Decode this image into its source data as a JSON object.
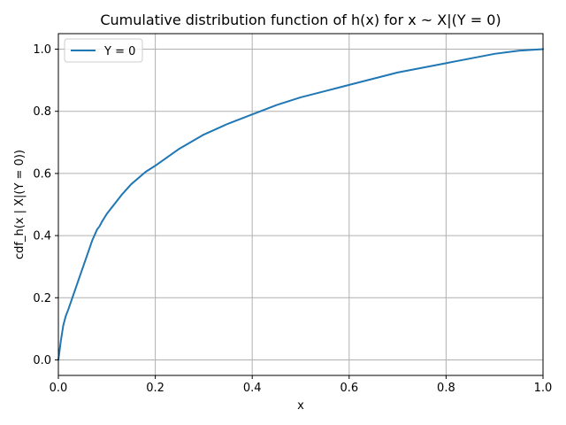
{
  "chart_data": {
    "type": "line",
    "title": "Cumulative distribution function of h(x) for x ~ X|(Y = 0)",
    "xlabel": "x",
    "ylabel": "cdf_h(x | X|(Y = 0))",
    "xlim": [
      0.0,
      1.0
    ],
    "ylim": [
      -0.05,
      1.05
    ],
    "grid": true,
    "legend_position": "top-left",
    "x_ticks": [
      "0.0",
      "0.2",
      "0.4",
      "0.6",
      "0.8",
      "1.0"
    ],
    "y_ticks": [
      "0.0",
      "0.2",
      "0.4",
      "0.6",
      "0.8",
      "1.0"
    ],
    "series": [
      {
        "name": "Y = 0",
        "color": "#1f77b4",
        "x": [
          0.0,
          0.005,
          0.01,
          0.015,
          0.02,
          0.03,
          0.04,
          0.05,
          0.06,
          0.07,
          0.08,
          0.085,
          0.09,
          0.1,
          0.12,
          0.13,
          0.15,
          0.18,
          0.2,
          0.25,
          0.3,
          0.35,
          0.4,
          0.45,
          0.5,
          0.55,
          0.6,
          0.65,
          0.7,
          0.75,
          0.8,
          0.85,
          0.9,
          0.95,
          1.0
        ],
        "values": [
          0.0,
          0.06,
          0.11,
          0.14,
          0.16,
          0.205,
          0.25,
          0.295,
          0.34,
          0.385,
          0.42,
          0.43,
          0.445,
          0.47,
          0.51,
          0.53,
          0.565,
          0.605,
          0.625,
          0.68,
          0.725,
          0.76,
          0.79,
          0.82,
          0.845,
          0.865,
          0.885,
          0.905,
          0.925,
          0.94,
          0.955,
          0.97,
          0.985,
          0.995,
          1.0
        ]
      }
    ]
  }
}
